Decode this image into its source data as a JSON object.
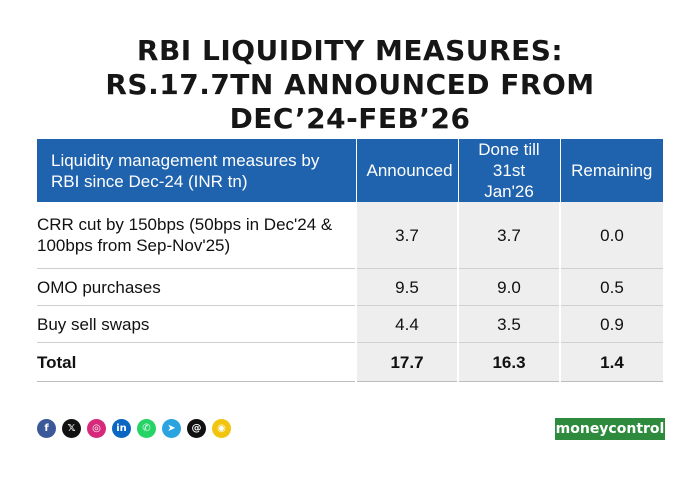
{
  "title": {
    "line1": "RBI LIQUIDITY MEASURES:",
    "line2": "RS.17.7TN ANNOUNCED FROM",
    "line3": "DEC’24-FEB’26"
  },
  "table": {
    "headers": {
      "measure": "Liquidity management measures by RBI since Dec-24 (INR tn)",
      "announced": "Announced",
      "done": "Done till 31st Jan'26",
      "remaining": "Remaining"
    },
    "rows": [
      {
        "measure": "CRR cut by 150bps (50bps in Dec'24 & 100bps from Sep-Nov'25)",
        "announced": "3.7",
        "done": "3.7",
        "remaining": "0.0"
      },
      {
        "measure": "OMO purchases",
        "announced": "9.5",
        "done": "9.0",
        "remaining": "0.5"
      },
      {
        "measure": "Buy sell swaps",
        "announced": "4.4",
        "done": "3.5",
        "remaining": "0.9"
      },
      {
        "measure": "Total",
        "announced": "17.7",
        "done": "16.3",
        "remaining": "1.4"
      }
    ]
  },
  "social_icons": [
    {
      "name": "facebook-icon",
      "glyph": "f",
      "color": "#3b5998"
    },
    {
      "name": "x-icon",
      "glyph": "𝕏",
      "color": "#111111"
    },
    {
      "name": "instagram-icon",
      "glyph": "◎",
      "color": "#d6297a"
    },
    {
      "name": "linkedin-icon",
      "glyph": "in",
      "color": "#0a66c2"
    },
    {
      "name": "whatsapp-icon",
      "glyph": "✆",
      "color": "#25d366"
    },
    {
      "name": "telegram-icon",
      "glyph": "➤",
      "color": "#2aa3df"
    },
    {
      "name": "threads-icon",
      "glyph": "@",
      "color": "#111111"
    },
    {
      "name": "snapchat-icon",
      "glyph": "◉",
      "color": "#f1c40f"
    }
  ],
  "brand": "moneycontrol"
}
